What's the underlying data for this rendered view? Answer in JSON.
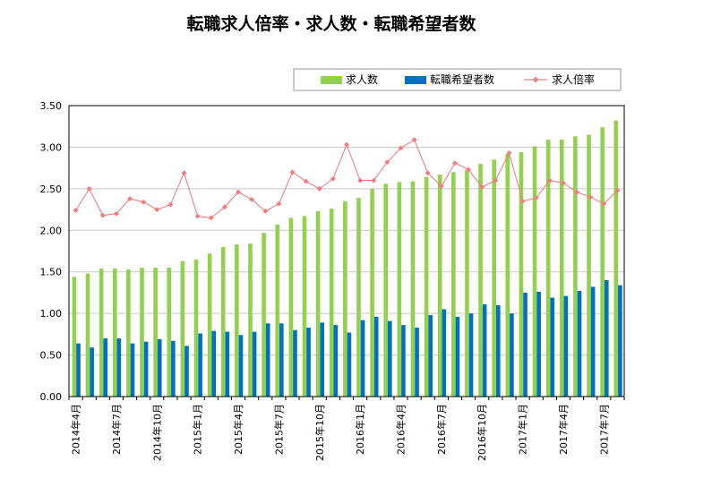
{
  "chart_data": {
    "type": "bar",
    "title": "転職求人倍率・求人数・転職希望者数",
    "xlabel": "",
    "ylabel": "",
    "ylim": [
      0,
      3.5
    ],
    "yticks": [
      "0.00",
      "0.50",
      "1.00",
      "1.50",
      "2.00",
      "2.50",
      "3.00",
      "3.50"
    ],
    "grid": true,
    "legend_position": "top-right",
    "categories": [
      "2014年4月",
      "2014年5月",
      "2014年6月",
      "2014年7月",
      "2014年8月",
      "2014年9月",
      "2014年10月",
      "2014年11月",
      "2014年12月",
      "2015年1月",
      "2015年2月",
      "2015年3月",
      "2015年4月",
      "2015年5月",
      "2015年6月",
      "2015年7月",
      "2015年8月",
      "2015年9月",
      "2015年10月",
      "2015年11月",
      "2015年12月",
      "2016年1月",
      "2016年2月",
      "2016年3月",
      "2016年4月",
      "2016年5月",
      "2016年6月",
      "2016年7月",
      "2016年8月",
      "2016年9月",
      "2016年10月",
      "2016年11月",
      "2016年12月",
      "2017年1月",
      "2017年2月",
      "2017年3月",
      "2017年4月",
      "2017年5月",
      "2017年6月",
      "2017年7月",
      "2017年8月"
    ],
    "xtick_labels": [
      {
        "index": 0,
        "label": "2014年4月"
      },
      {
        "index": 3,
        "label": "2014年7月"
      },
      {
        "index": 6,
        "label": "2014年10月"
      },
      {
        "index": 9,
        "label": "2015年1月"
      },
      {
        "index": 12,
        "label": "2015年4月"
      },
      {
        "index": 15,
        "label": "2015年7月"
      },
      {
        "index": 18,
        "label": "2015年10月"
      },
      {
        "index": 21,
        "label": "2016年1月"
      },
      {
        "index": 24,
        "label": "2016年4月"
      },
      {
        "index": 27,
        "label": "2016年7月"
      },
      {
        "index": 30,
        "label": "2016年10月"
      },
      {
        "index": 33,
        "label": "2017年1月"
      },
      {
        "index": 36,
        "label": "2017年4月"
      },
      {
        "index": 39,
        "label": "2017年7月"
      }
    ],
    "series": [
      {
        "name": "求人数",
        "kind": "bar",
        "color": "#92d050",
        "values": [
          1.44,
          1.48,
          1.54,
          1.54,
          1.53,
          1.55,
          1.55,
          1.55,
          1.63,
          1.65,
          1.72,
          1.8,
          1.83,
          1.84,
          1.97,
          2.07,
          2.15,
          2.17,
          2.23,
          2.26,
          2.35,
          2.39,
          2.5,
          2.56,
          2.58,
          2.59,
          2.64,
          2.67,
          2.7,
          2.72,
          2.8,
          2.85,
          2.92,
          2.94,
          3.01,
          3.09,
          3.09,
          3.13,
          3.15,
          3.24,
          3.32
        ]
      },
      {
        "name": "転職希望者数",
        "kind": "bar",
        "color": "#0070c0",
        "values": [
          0.64,
          0.59,
          0.7,
          0.7,
          0.64,
          0.66,
          0.69,
          0.67,
          0.61,
          0.76,
          0.79,
          0.78,
          0.74,
          0.78,
          0.88,
          0.88,
          0.8,
          0.83,
          0.89,
          0.86,
          0.77,
          0.92,
          0.96,
          0.91,
          0.86,
          0.83,
          0.98,
          1.05,
          0.96,
          1.0,
          1.11,
          1.1,
          1.0,
          1.25,
          1.26,
          1.19,
          1.21,
          1.27,
          1.32,
          1.4,
          1.34
        ]
      },
      {
        "name": "求人倍率",
        "kind": "line",
        "color": "#f08080",
        "values": [
          2.24,
          2.5,
          2.18,
          2.2,
          2.38,
          2.34,
          2.25,
          2.31,
          2.69,
          2.17,
          2.15,
          2.28,
          2.46,
          2.37,
          2.23,
          2.32,
          2.7,
          2.59,
          2.5,
          2.62,
          3.03,
          2.6,
          2.6,
          2.82,
          2.99,
          3.09,
          2.69,
          2.53,
          2.81,
          2.73,
          2.52,
          2.6,
          2.93,
          2.35,
          2.39,
          2.6,
          2.57,
          2.46,
          2.4,
          2.32,
          2.48
        ]
      }
    ]
  }
}
